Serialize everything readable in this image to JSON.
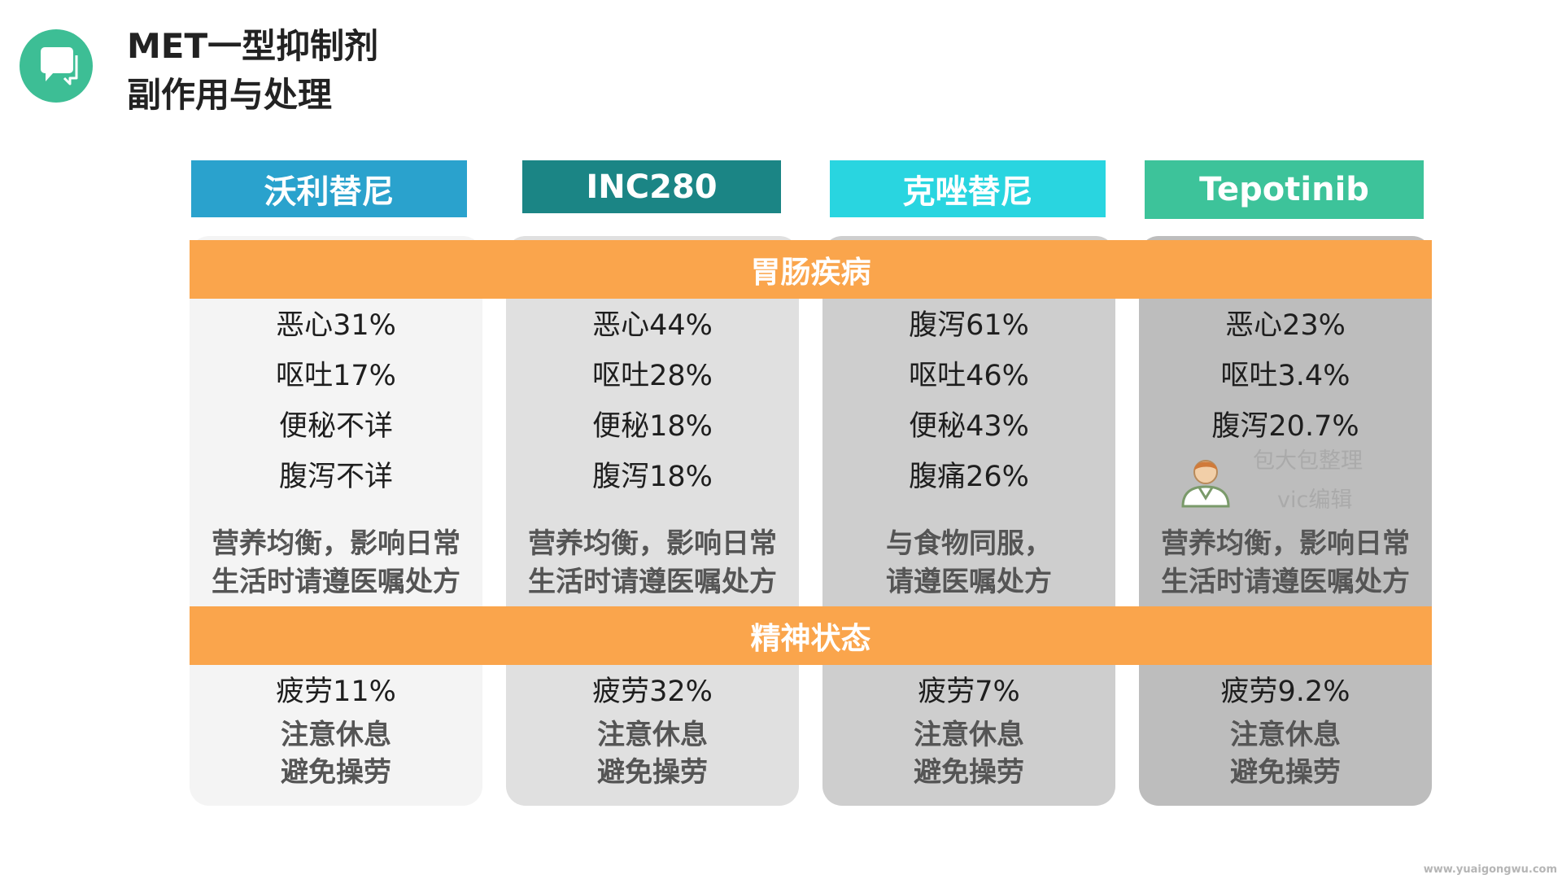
{
  "title": {
    "line1": "MET一型抑制剂",
    "line2": "副作用与处理"
  },
  "drugs": [
    "沃利替尼",
    "INC280",
    "克唑替尼",
    "Tepotinib"
  ],
  "sections": {
    "gi": "胃肠疾病",
    "mental": "精神状态"
  },
  "gi_stats": [
    [
      "恶心31%",
      "呕吐17%",
      "便秘不详",
      "腹泻不详"
    ],
    [
      "恶心44%",
      "呕吐28%",
      "便秘18%",
      "腹泻18%"
    ],
    [
      "腹泻61%",
      "呕吐46%",
      "便秘43%",
      "腹痛26%"
    ],
    [
      "恶心23%",
      "呕吐3.4%",
      "腹泻20.7%"
    ]
  ],
  "gi_advice": [
    [
      "营养均衡，影响日常",
      "生活时请遵医嘱处方"
    ],
    [
      "营养均衡，影响日常",
      "生活时请遵医嘱处方"
    ],
    [
      "与食物同服，",
      "请遵医嘱处方"
    ],
    [
      "营养均衡，影响日常",
      "生活时请遵医嘱处方"
    ]
  ],
  "fatigue": [
    "疲劳11%",
    "疲劳32%",
    "疲劳7%",
    "疲劳9.2%"
  ],
  "rest_advice": [
    "注意休息",
    "避免操劳"
  ],
  "watermark": {
    "line1": "包大包整理",
    "line2": "vic编辑"
  },
  "footer_url": "www.yuaigongwu.com",
  "colors": {
    "logo": "#3dbe95",
    "drug_headers": [
      "#2aa2cd",
      "#1b8585",
      "#29d5e0",
      "#3dc39a"
    ],
    "band": "#faa54c",
    "column_backgrounds": [
      "#f4f4f4",
      "#e0e0e0",
      "#cecece",
      "#bdbdbd"
    ]
  },
  "icons": {
    "logo": "chat-bubble-icon",
    "watermark": "person-icon"
  }
}
